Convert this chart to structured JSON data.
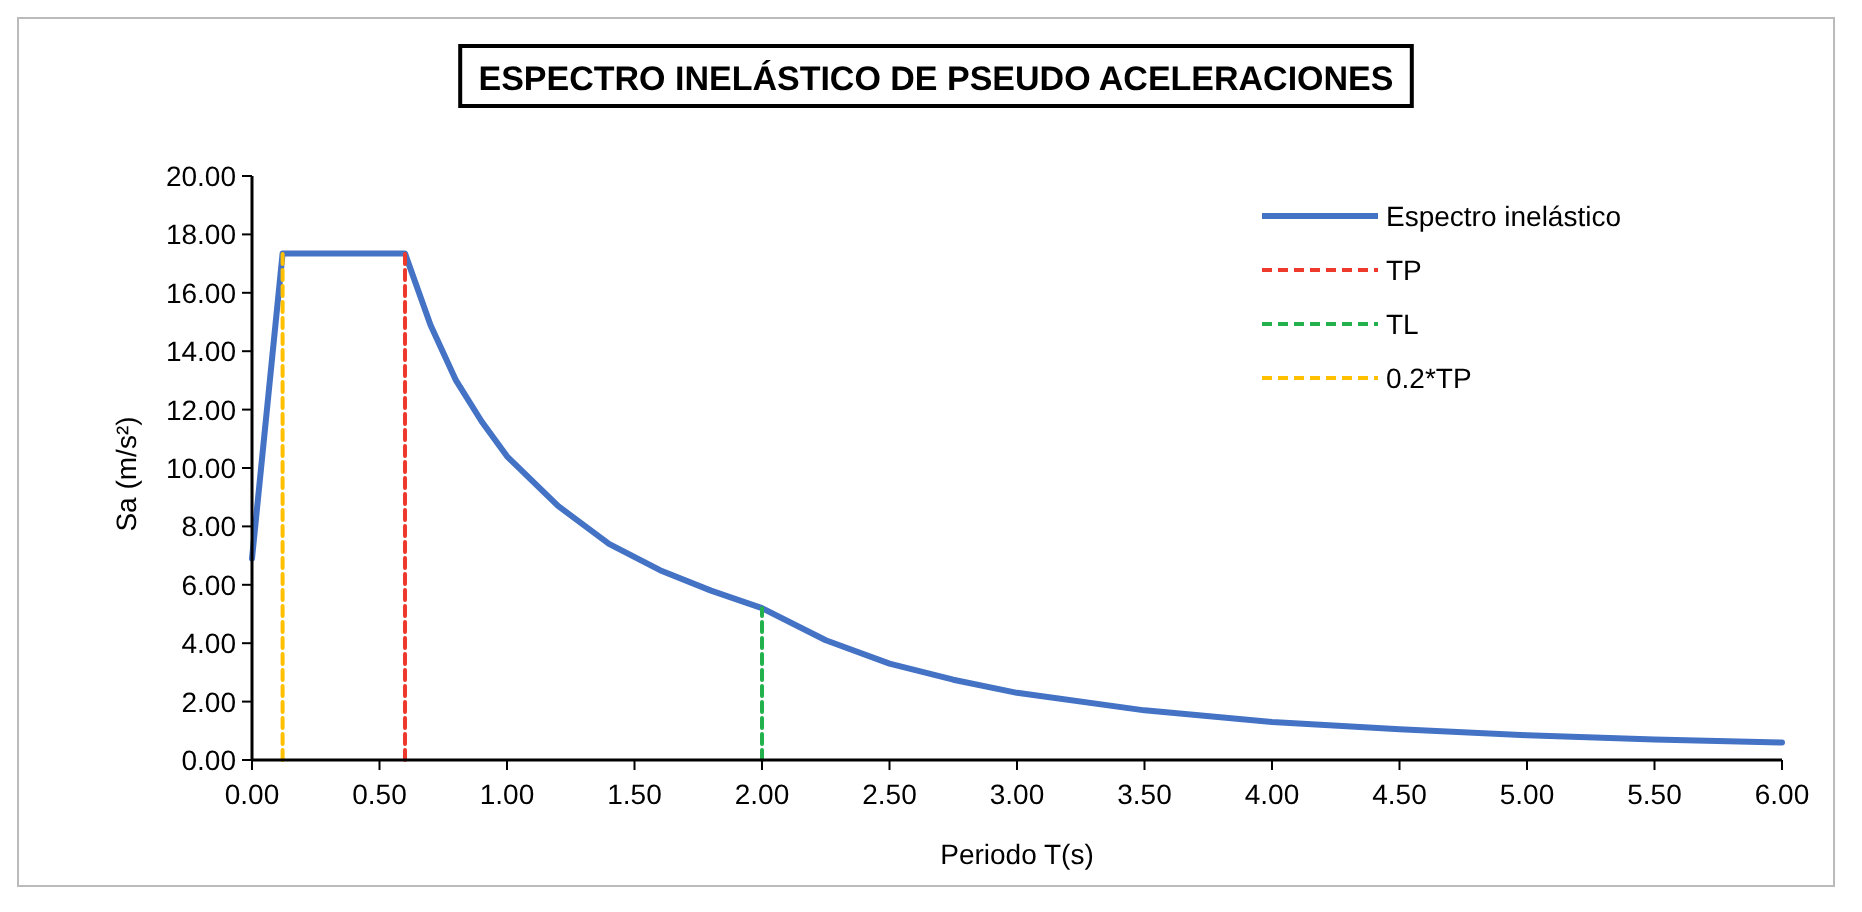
{
  "chart_data": {
    "type": "line",
    "title": "ESPECTRO INELÁSTICO DE PSEUDO ACELERACIONES",
    "xlabel": "Periodo T(s)",
    "ylabel": "Sa (m/s²)",
    "xlim": [
      0,
      6
    ],
    "xticks": [
      {
        "value": 0,
        "label": "0.00"
      },
      {
        "value": 0.5,
        "label": "0.50"
      },
      {
        "value": 1,
        "label": "1.00"
      },
      {
        "value": 1.5,
        "label": "1.50"
      },
      {
        "value": 2,
        "label": "2.00"
      },
      {
        "value": 2.5,
        "label": "2.50"
      },
      {
        "value": 3,
        "label": "3.00"
      },
      {
        "value": 3.5,
        "label": "3.50"
      },
      {
        "value": 4,
        "label": "4.00"
      },
      {
        "value": 4.5,
        "label": "4.50"
      },
      {
        "value": 5,
        "label": "5.00"
      },
      {
        "value": 5.5,
        "label": "5.50"
      },
      {
        "value": 6,
        "label": "6.00"
      }
    ],
    "ylim": [
      0,
      20
    ],
    "yticks": [
      {
        "value": 0,
        "label": "0.00"
      },
      {
        "value": 2,
        "label": "2.00"
      },
      {
        "value": 4,
        "label": "4.00"
      },
      {
        "value": 6,
        "label": "6.00"
      },
      {
        "value": 8,
        "label": "8.00"
      },
      {
        "value": 10,
        "label": "10.00"
      },
      {
        "value": 12,
        "label": "12.00"
      },
      {
        "value": 14,
        "label": "14.00"
      },
      {
        "value": 16,
        "label": "16.00"
      },
      {
        "value": 18,
        "label": "18.00"
      },
      {
        "value": 20,
        "label": "20.00"
      }
    ],
    "legend": "top right",
    "grid": false,
    "series": [
      {
        "name": "Espectro inelástico",
        "color": "#4472c4",
        "line_style": "solid",
        "x": [
          0,
          0.12,
          0.6,
          0.7,
          0.8,
          0.9,
          1.0,
          1.2,
          1.4,
          1.6,
          1.8,
          2.0,
          2.25,
          2.5,
          2.75,
          3.0,
          3.5,
          4.0,
          4.5,
          5.0,
          5.5,
          6.0
        ],
        "values": [
          6.9,
          17.35,
          17.35,
          14.9,
          13.0,
          11.6,
          10.4,
          8.7,
          7.4,
          6.5,
          5.8,
          5.2,
          4.1,
          3.3,
          2.75,
          2.3,
          1.7,
          1.3,
          1.05,
          0.85,
          0.7,
          0.6
        ]
      },
      {
        "name": "TP",
        "color": "#ee3a2c",
        "line_style": "dashed",
        "x": [
          0.6,
          0.6
        ],
        "values": [
          0,
          17.35
        ]
      },
      {
        "name": "TL",
        "color": "#22b14c",
        "line_style": "dashed",
        "x": [
          2,
          2
        ],
        "values": [
          0,
          5.2
        ]
      },
      {
        "name": "0.2*TP",
        "color": "#ffc000",
        "line_style": "dashed",
        "x": [
          0.12,
          0.12
        ],
        "values": [
          0,
          17.35
        ]
      }
    ]
  }
}
